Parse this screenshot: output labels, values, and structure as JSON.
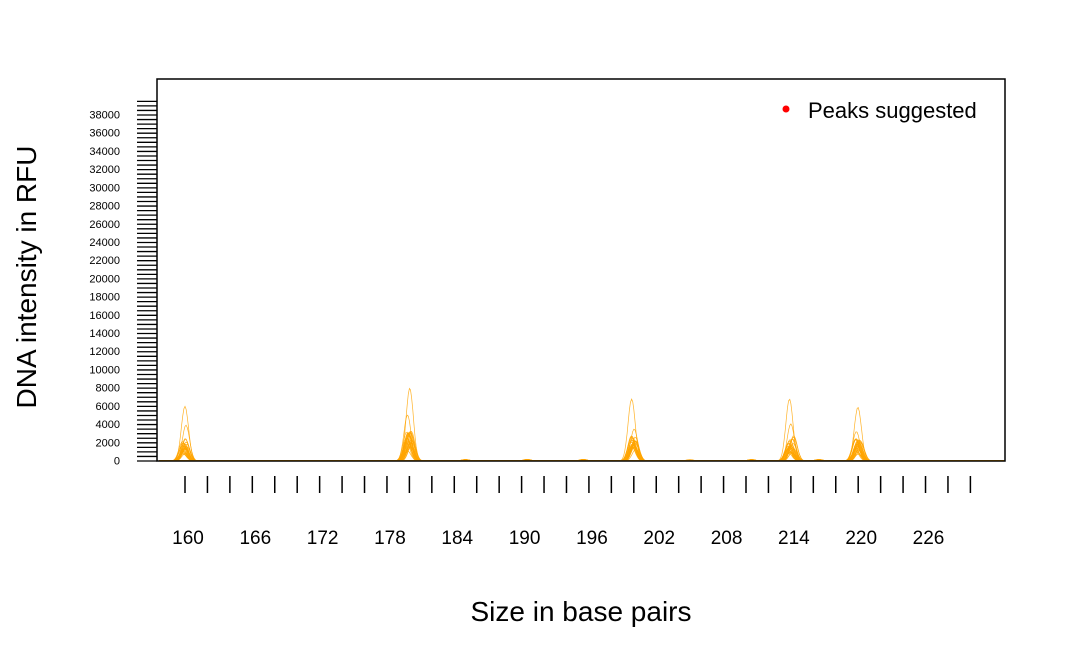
{
  "chart_data": {
    "type": "line",
    "title": "",
    "xlabel": "Size in base pairs",
    "ylabel": "DNA intensity in RFU",
    "xlim": [
      158.5,
      234
    ],
    "ylim": [
      0,
      38000
    ],
    "x_ticks": [
      160,
      166,
      172,
      178,
      184,
      190,
      196,
      202,
      208,
      214,
      220,
      226
    ],
    "y_ticks": [
      0,
      2000,
      4000,
      6000,
      8000,
      10000,
      12000,
      14000,
      16000,
      18000,
      20000,
      22000,
      24000,
      26000,
      28000,
      30000,
      32000,
      34000,
      36000,
      38000
    ],
    "legend": {
      "position": "top-right",
      "entries": [
        {
          "label": "Peaks suggested",
          "color": "#ff0000",
          "marker": "dot"
        }
      ]
    },
    "series_color": "#ffa500",
    "peaks": [
      {
        "x": 160,
        "max_height": 6000
      },
      {
        "x": 180,
        "max_height": 8000
      },
      {
        "x": 200,
        "max_height": 6800
      },
      {
        "x": 214,
        "max_height": 6800
      },
      {
        "x": 220,
        "max_height": 5900
      }
    ],
    "grid": false
  }
}
